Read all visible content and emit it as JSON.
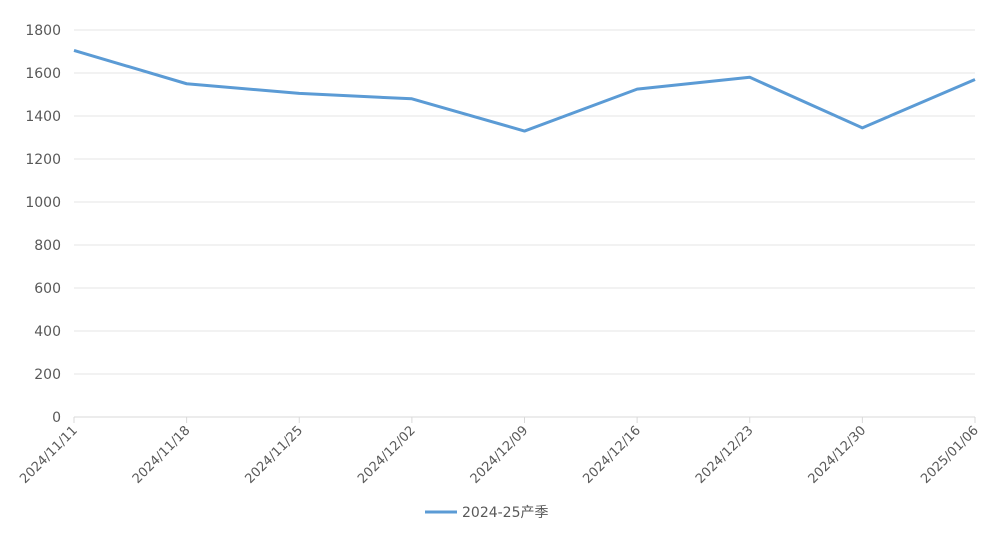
{
  "chart_data": {
    "type": "line",
    "categories": [
      "2024/11/11",
      "2024/11/18",
      "2024/11/25",
      "2024/12/02",
      "2024/12/09",
      "2024/12/16",
      "2024/12/23",
      "2024/12/30",
      "2025/01/06"
    ],
    "series": [
      {
        "name": "2024-25产季",
        "color": "#5b9bd5",
        "values": [
          1705,
          1550,
          1505,
          1480,
          1330,
          1525,
          1580,
          1345,
          1570
        ]
      }
    ],
    "ylim": [
      0,
      1800
    ],
    "yticks": [
      0,
      200,
      400,
      600,
      800,
      1000,
      1200,
      1400,
      1600,
      1800
    ],
    "grid": true,
    "legend": "bottom"
  }
}
